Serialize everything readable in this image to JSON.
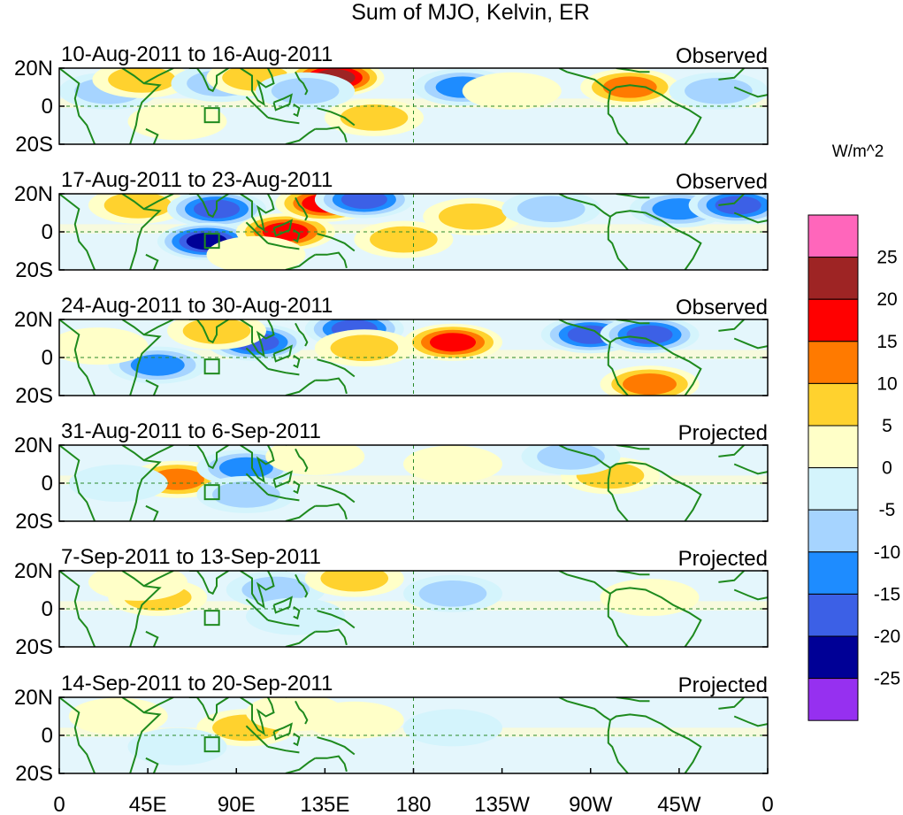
{
  "chart_data": {
    "type": "heatmap",
    "title": "Sum of MJO, Kelvin, ER",
    "units_label": "W/m^2",
    "x_ticks": [
      "0",
      "45E",
      "90E",
      "135E",
      "180",
      "135W",
      "90W",
      "45W",
      "0"
    ],
    "y_ticks": [
      "20N",
      "0",
      "20S"
    ],
    "colorbar": {
      "labels": [
        "25",
        "20",
        "15",
        "10",
        "5",
        "0",
        "-5",
        "-10",
        "-15",
        "-20",
        "-25"
      ],
      "colors": [
        "#ff66bb",
        "#9e2424",
        "#ff0000",
        "#ff7a00",
        "#ffd22e",
        "#ffffc8",
        "#d4f4fc",
        "#a6d4ff",
        "#1e8cff",
        "#3c60e6",
        "#000096",
        "#9630f0"
      ]
    },
    "panels": [
      {
        "period": "10-Aug-2011 to 16-Aug-2011",
        "status": "Observed",
        "anomalies": [
          {
            "lon": 25,
            "lat": 8,
            "value": -12
          },
          {
            "lon": 42,
            "lat": 14,
            "value": 8
          },
          {
            "lon": 82,
            "lat": 12,
            "value": -8
          },
          {
            "lon": 100,
            "lat": 15,
            "value": 12
          },
          {
            "lon": 140,
            "lat": 15,
            "value": 24
          },
          {
            "lon": 125,
            "lat": 8,
            "value": -10
          },
          {
            "lon": 160,
            "lat": -6,
            "value": 12
          },
          {
            "lon": 205,
            "lat": 10,
            "value": -14
          },
          {
            "lon": 230,
            "lat": 8,
            "value": 6
          },
          {
            "lon": 290,
            "lat": 10,
            "value": 16
          },
          {
            "lon": 335,
            "lat": 8,
            "value": -8
          },
          {
            "lon": 60,
            "lat": -8,
            "value": 6
          }
        ]
      },
      {
        "period": "17-Aug-2011 to 23-Aug-2011",
        "status": "Observed",
        "anomalies": [
          {
            "lon": 40,
            "lat": 14,
            "value": 10
          },
          {
            "lon": 80,
            "lat": 12,
            "value": -18
          },
          {
            "lon": 75,
            "lat": -5,
            "value": -24
          },
          {
            "lon": 115,
            "lat": 0,
            "value": 22
          },
          {
            "lon": 135,
            "lat": 15,
            "value": 18
          },
          {
            "lon": 155,
            "lat": 17,
            "value": -20
          },
          {
            "lon": 175,
            "lat": -4,
            "value": 12
          },
          {
            "lon": 210,
            "lat": 8,
            "value": 12
          },
          {
            "lon": 250,
            "lat": 12,
            "value": -10
          },
          {
            "lon": 315,
            "lat": 12,
            "value": -16
          },
          {
            "lon": 345,
            "lat": 14,
            "value": -18
          },
          {
            "lon": 100,
            "lat": -12,
            "value": 6
          }
        ]
      },
      {
        "period": "24-Aug-2011 to 30-Aug-2011",
        "status": "Observed",
        "anomalies": [
          {
            "lon": 50,
            "lat": -4,
            "value": -14
          },
          {
            "lon": 100,
            "lat": 8,
            "value": -22
          },
          {
            "lon": 80,
            "lat": 14,
            "value": 8
          },
          {
            "lon": 150,
            "lat": 15,
            "value": -18
          },
          {
            "lon": 155,
            "lat": 5,
            "value": 12
          },
          {
            "lon": 200,
            "lat": 8,
            "value": 18
          },
          {
            "lon": 270,
            "lat": 12,
            "value": -20
          },
          {
            "lon": 300,
            "lat": 12,
            "value": -18
          },
          {
            "lon": 300,
            "lat": -14,
            "value": 14
          },
          {
            "lon": 20,
            "lat": 6,
            "value": 6
          }
        ]
      },
      {
        "period": "31-Aug-2011 to 6-Sep-2011",
        "status": "Projected",
        "anomalies": [
          {
            "lon": 60,
            "lat": 2,
            "value": 14
          },
          {
            "lon": 95,
            "lat": 8,
            "value": -14
          },
          {
            "lon": 95,
            "lat": -6,
            "value": -10
          },
          {
            "lon": 130,
            "lat": 14,
            "value": 6
          },
          {
            "lon": 280,
            "lat": 4,
            "value": 8
          },
          {
            "lon": 260,
            "lat": 14,
            "value": -8
          },
          {
            "lon": 30,
            "lat": 0,
            "value": -6
          },
          {
            "lon": 200,
            "lat": 10,
            "value": 4
          }
        ]
      },
      {
        "period": "7-Sep-2011 to 13-Sep-2011",
        "status": "Projected",
        "anomalies": [
          {
            "lon": 50,
            "lat": 6,
            "value": 12
          },
          {
            "lon": 110,
            "lat": 10,
            "value": -8
          },
          {
            "lon": 150,
            "lat": 16,
            "value": 10
          },
          {
            "lon": 200,
            "lat": 8,
            "value": -8
          },
          {
            "lon": 120,
            "lat": -4,
            "value": -6
          },
          {
            "lon": 40,
            "lat": 14,
            "value": 6
          },
          {
            "lon": 300,
            "lat": 6,
            "value": 4
          }
        ]
      },
      {
        "period": "14-Sep-2011 to 20-Sep-2011",
        "status": "Projected",
        "anomalies": [
          {
            "lon": 95,
            "lat": 4,
            "value": 10
          },
          {
            "lon": 120,
            "lat": 12,
            "value": 6
          },
          {
            "lon": 150,
            "lat": 8,
            "value": 6
          },
          {
            "lon": 60,
            "lat": -6,
            "value": -6
          },
          {
            "lon": 200,
            "lat": 4,
            "value": -4
          },
          {
            "lon": 30,
            "lat": 10,
            "value": 4
          }
        ]
      }
    ]
  }
}
